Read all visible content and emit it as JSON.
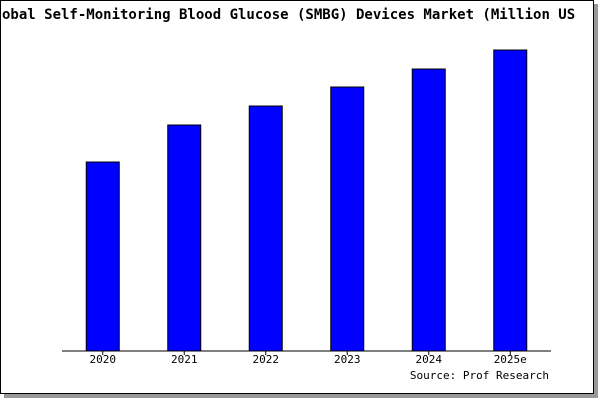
{
  "chart_data": {
    "type": "bar",
    "title": "obal Self-Monitoring Blood Glucose (SMBG) Devices Market (Million US",
    "categories": [
      "2020",
      "2021",
      "2022",
      "2023",
      "2024",
      "2025e"
    ],
    "values": [
      189,
      226,
      245,
      264,
      282,
      301
    ],
    "color": "#0000ff",
    "source": "Source: Prof Research"
  }
}
